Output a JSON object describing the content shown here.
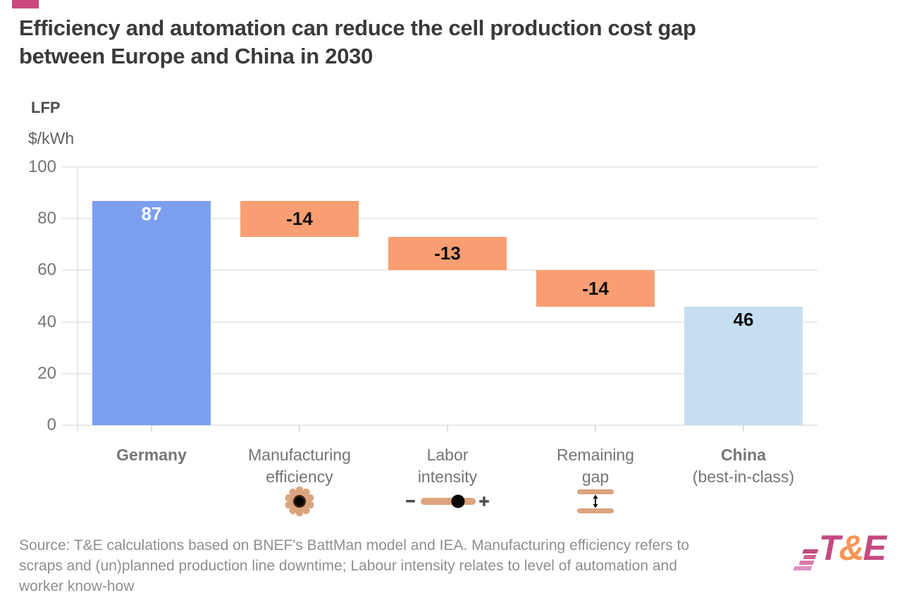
{
  "page": {
    "background": "#ffffff",
    "accent_color": "#c9487d"
  },
  "header": {
    "title_line1": "Efficiency and automation can reduce the cell production cost gap",
    "title_line2": "between Europe and China in 2030"
  },
  "chart_data": {
    "type": "bar",
    "subtype": "waterfall",
    "chemistry_label": "LFP",
    "unit_label": "$/kWh",
    "ylim": [
      0,
      100
    ],
    "yticks": [
      0,
      20,
      40,
      60,
      80,
      100
    ],
    "grid": true,
    "legend": "none",
    "categories": [
      "Germany",
      "Manufacturing efficiency",
      "Labor intensity",
      "Remaining gap",
      "China (best-in-class)"
    ],
    "series": [
      {
        "category": "Germany",
        "label_lines": [
          "Germany"
        ],
        "label_bold": true,
        "label_bold_first_line_only": false,
        "start": 0,
        "end": 87,
        "value": 87,
        "value_label": "87",
        "bar_color": "#7d9ff1",
        "value_color": "#ffffff",
        "icon": ""
      },
      {
        "category": "Manufacturing efficiency",
        "label_lines": [
          "Manufacturing",
          "efficiency"
        ],
        "label_bold": false,
        "label_bold_first_line_only": false,
        "start": 87,
        "end": 73,
        "value": -14,
        "value_label": "-14",
        "bar_color": "#f99e72",
        "value_color": "#0d0d0d",
        "icon": "gear-icon"
      },
      {
        "category": "Labor intensity",
        "label_lines": [
          "Labor",
          "intensity"
        ],
        "label_bold": false,
        "label_bold_first_line_only": false,
        "start": 73,
        "end": 60,
        "value": -13,
        "value_label": "-13",
        "bar_color": "#f99e72",
        "value_color": "#0d0d0d",
        "icon": "slider-icon"
      },
      {
        "category": "Remaining gap",
        "label_lines": [
          "Remaining",
          "gap"
        ],
        "label_bold": false,
        "label_bold_first_line_only": false,
        "start": 60,
        "end": 46,
        "value": -14,
        "value_label": "-14",
        "bar_color": "#f99e72",
        "value_color": "#0d0d0d",
        "icon": "vertical-gap-icon"
      },
      {
        "category": "China (best-in-class)",
        "label_lines": [
          "China",
          "(best-in-class)"
        ],
        "label_bold": true,
        "label_bold_first_line_only": true,
        "start": 46,
        "end": 0,
        "value": 46,
        "value_label": "46",
        "bar_color": "#c6dff2",
        "value_color": "#0d0d0d",
        "icon": ""
      }
    ],
    "icon_color": "#dba47e",
    "gridline_color": "#e9e9e9",
    "axis_label_color": "#757575"
  },
  "footer": {
    "source_lines": [
      "Source: T&E calculations based on BNEF's BattMan model and IEA. Manufacturing efficiency refers to",
      "scraps and (un)planned production line downtime; Labour intensity relates to level of automation and",
      "worker know-how"
    ],
    "logo_t": "T",
    "logo_amp": "&",
    "logo_e": "E",
    "logo_magenta": "#c5497f",
    "logo_orange": "#f79556"
  }
}
